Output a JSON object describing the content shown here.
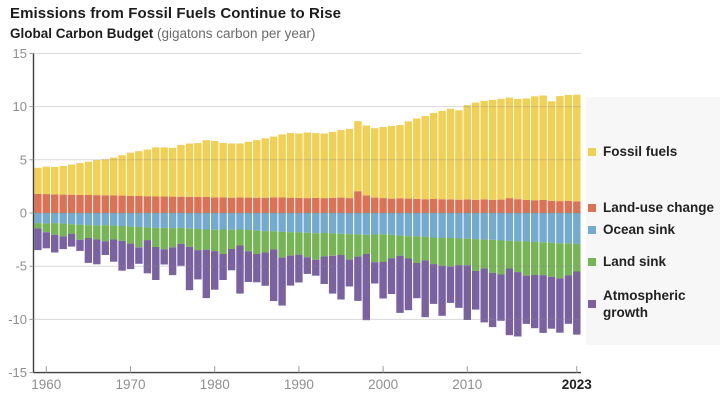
{
  "header": {
    "title": "Emissions from Fossil Fuels Continue to Rise",
    "subtitle_bold": "Global Carbon Budget",
    "subtitle_note": " (gigatons carbon per year)"
  },
  "colors": {
    "fossil": "#F0D055",
    "land_use": "#DB7256",
    "ocean_sink": "#73AACD",
    "land_sink": "#76B456",
    "atmospheric_growth": "#7A62A0",
    "axis_line": "#3f3f3f",
    "tick_text": "#8f8f8f",
    "gridline": "#8a8a8a",
    "title_text": "#1d1d1d",
    "legend_bg": "#f7f7f7"
  },
  "legend": {
    "items": [
      {
        "label": "Fossil fuels",
        "color": "#F0D055"
      },
      {
        "label": "Land-use change",
        "color": "#DB7256"
      },
      {
        "label": "Ocean sink",
        "color": "#73AACD"
      },
      {
        "label": "Land sink",
        "color": "#76B456"
      },
      {
        "label": "Atmospheric growth",
        "color": "#7A62A0"
      }
    ]
  },
  "chart_data": {
    "type": "bar",
    "stacked": true,
    "title": "Emissions from Fossil Fuels Continue to Rise",
    "subtitle": "Global Carbon Budget (gigatons carbon per year)",
    "unit": "gigatons carbon per year",
    "ylim": [
      -15,
      15
    ],
    "grid": true,
    "legend_position": "right",
    "yticks": [
      15,
      10,
      5,
      0,
      -5,
      -10,
      -15
    ],
    "xticks": [
      {
        "label": "1960",
        "year": 1960,
        "bold": false
      },
      {
        "label": "1970",
        "year": 1970,
        "bold": false
      },
      {
        "label": "1980",
        "year": 1980,
        "bold": false
      },
      {
        "label": "1990",
        "year": 1990,
        "bold": false
      },
      {
        "label": "2000",
        "year": 2000,
        "bold": false
      },
      {
        "label": "2010",
        "year": 2010,
        "bold": false
      },
      {
        "label": "2023",
        "year": 2023,
        "bold": true
      }
    ],
    "years": [
      1959,
      1960,
      1961,
      1962,
      1963,
      1964,
      1965,
      1966,
      1967,
      1968,
      1969,
      1970,
      1971,
      1972,
      1973,
      1974,
      1975,
      1976,
      1977,
      1978,
      1979,
      1980,
      1981,
      1982,
      1983,
      1984,
      1985,
      1986,
      1987,
      1988,
      1989,
      1990,
      1991,
      1992,
      1993,
      1994,
      1995,
      1996,
      1997,
      1998,
      1999,
      2000,
      2001,
      2002,
      2003,
      2004,
      2005,
      2006,
      2007,
      2008,
      2009,
      2010,
      2011,
      2012,
      2013,
      2014,
      2015,
      2016,
      2017,
      2018,
      2019,
      2020,
      2021,
      2022,
      2023
    ],
    "series": [
      {
        "name": "Land-use change",
        "key": "land-use-change",
        "sign": 1,
        "color": "#DB7256",
        "values": [
          1.8,
          1.78,
          1.75,
          1.73,
          1.72,
          1.7,
          1.69,
          1.68,
          1.66,
          1.65,
          1.64,
          1.62,
          1.6,
          1.58,
          1.56,
          1.55,
          1.54,
          1.53,
          1.52,
          1.51,
          1.5,
          1.48,
          1.46,
          1.44,
          1.46,
          1.45,
          1.44,
          1.44,
          1.47,
          1.46,
          1.44,
          1.42,
          1.4,
          1.42,
          1.4,
          1.42,
          1.45,
          1.4,
          2.05,
          1.65,
          1.45,
          1.4,
          1.35,
          1.38,
          1.35,
          1.32,
          1.3,
          1.32,
          1.3,
          1.28,
          1.25,
          1.28,
          1.24,
          1.28,
          1.24,
          1.26,
          1.4,
          1.3,
          1.22,
          1.2,
          1.22,
          1.15,
          1.12,
          1.15,
          1.1
        ]
      },
      {
        "name": "Fossil fuels",
        "key": "fossil-fuels",
        "sign": 1,
        "color": "#F0D055",
        "values": [
          2.45,
          2.57,
          2.58,
          2.69,
          2.83,
          2.99,
          3.13,
          3.29,
          3.39,
          3.57,
          3.78,
          4.05,
          4.21,
          4.38,
          4.61,
          4.62,
          4.59,
          4.86,
          5.0,
          5.06,
          5.34,
          5.29,
          5.13,
          5.09,
          5.07,
          5.24,
          5.41,
          5.58,
          5.71,
          5.93,
          6.07,
          6.05,
          6.17,
          6.08,
          6.07,
          6.2,
          6.34,
          6.5,
          6.59,
          6.57,
          6.52,
          6.68,
          6.84,
          6.89,
          7.26,
          7.56,
          7.82,
          8.09,
          8.29,
          8.51,
          8.4,
          8.86,
          9.14,
          9.26,
          9.39,
          9.47,
          9.45,
          9.42,
          9.54,
          9.77,
          9.82,
          9.35,
          9.87,
          9.94,
          10.02
        ]
      },
      {
        "name": "Ocean sink",
        "key": "ocean-sink",
        "sign": -1,
        "color": "#73AACD",
        "values": [
          0.95,
          1.0,
          0.95,
          1.0,
          1.05,
          1.12,
          1.15,
          1.18,
          1.15,
          1.18,
          1.22,
          1.28,
          1.32,
          1.35,
          1.4,
          1.4,
          1.42,
          1.4,
          1.48,
          1.5,
          1.55,
          1.58,
          1.55,
          1.58,
          1.55,
          1.6,
          1.65,
          1.7,
          1.72,
          1.78,
          1.8,
          1.82,
          1.85,
          1.9,
          1.88,
          1.92,
          1.95,
          1.98,
          2.0,
          2.05,
          2.02,
          2.0,
          2.05,
          2.12,
          2.18,
          2.2,
          2.25,
          2.3,
          2.35,
          2.35,
          2.4,
          2.42,
          2.45,
          2.5,
          2.52,
          2.58,
          2.62,
          2.65,
          2.68,
          2.72,
          2.75,
          2.8,
          2.85,
          2.85,
          2.9
        ]
      },
      {
        "name": "Land sink",
        "key": "land-sink",
        "sign": -1,
        "color": "#76B456",
        "values": [
          0.5,
          0.8,
          1.1,
          1.2,
          0.9,
          1.4,
          1.2,
          1.3,
          1.5,
          1.3,
          1.4,
          1.6,
          1.9,
          1.2,
          1.8,
          2.0,
          1.8,
          1.5,
          1.7,
          2.0,
          1.9,
          2.0,
          2.3,
          1.8,
          1.5,
          2.0,
          2.2,
          2.0,
          1.7,
          2.4,
          2.2,
          2.1,
          2.3,
          2.5,
          2.2,
          2.1,
          2.0,
          2.4,
          2.1,
          1.8,
          2.6,
          2.6,
          2.2,
          1.9,
          2.1,
          2.5,
          2.2,
          2.5,
          2.6,
          2.7,
          2.5,
          2.5,
          3.0,
          2.7,
          3.1,
          3.2,
          2.6,
          2.9,
          3.2,
          3.1,
          3.1,
          3.2,
          3.3,
          3.0,
          2.6
        ]
      },
      {
        "name": "Atmospheric growth",
        "key": "atmospheric-growth",
        "sign": -1,
        "color": "#7A62A0",
        "values": [
          2.04,
          1.51,
          1.66,
          1.19,
          1.21,
          1.04,
          2.34,
          2.34,
          1.3,
          2.1,
          2.8,
          2.4,
          1.55,
          3.12,
          3.1,
          1.44,
          2.61,
          2.06,
          4.08,
          2.74,
          4.55,
          3.63,
          2.44,
          2.0,
          4.52,
          2.89,
          2.66,
          3.14,
          4.86,
          4.52,
          2.82,
          2.61,
          1.57,
          1.49,
          2.59,
          3.55,
          4.18,
          2.53,
          4.16,
          6.22,
          2.0,
          3.44,
          3.36,
          5.37,
          4.86,
          3.31,
          5.35,
          3.74,
          4.71,
          3.4,
          4.01,
          5.14,
          3.63,
          5.08,
          5.1,
          4.35,
          6.27,
          6.05,
          4.54,
          5.01,
          5.42,
          4.88,
          5.1,
          4.57,
          5.93
        ]
      }
    ]
  }
}
